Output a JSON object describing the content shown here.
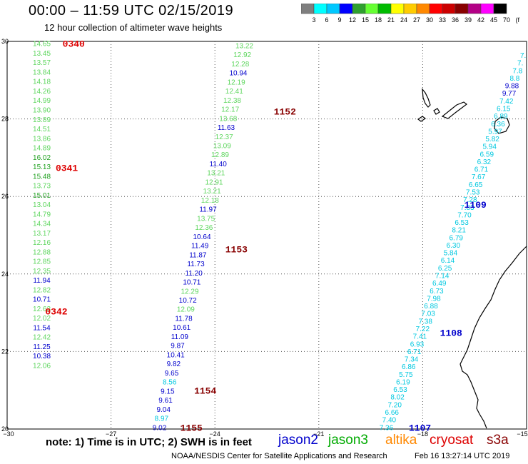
{
  "title": "00:00  –  11:59 UTC 02/15/2019",
  "subtitle": "12 hour collection of altimeter wave heights",
  "colorbar": {
    "colors": [
      "#7f7f7f",
      "#00ffff",
      "#00c8ff",
      "#0000ff",
      "#2fa02f",
      "#66ff33",
      "#00bb00",
      "#ffff00",
      "#ffcc00",
      "#ff8800",
      "#ff0000",
      "#cc0000",
      "#880000",
      "#b30086",
      "#ff00ff",
      "#000000"
    ],
    "labels": [
      "3",
      "6",
      "9",
      "12",
      "15",
      "18",
      "21",
      "24",
      "27",
      "30",
      "33",
      "36",
      "39",
      "42",
      "45",
      "70",
      "(ft)"
    ]
  },
  "axes": {
    "lon_ticks": [
      "−30",
      "−27",
      "−24",
      "−21",
      "−18",
      "−15"
    ],
    "lat_ticks": [
      "30",
      "28",
      "26",
      "24",
      "22",
      "20"
    ],
    "lon_range": [
      -30,
      -15
    ],
    "lat_range": [
      20,
      30
    ]
  },
  "value_colors": {
    "cyan": "#00c8e0",
    "blue": "#0000cc",
    "lightgreen": "#5ed65e",
    "green": "#1fa01f",
    "time_red": "#dd0000",
    "time_darkred": "#880000",
    "time_blue": "#0000cc"
  },
  "tracks": [
    {
      "name": "track-0340",
      "lon_top": -29.0,
      "lon_bottom": -29.0,
      "lat_top": 29.95,
      "lat_bottom": 21.65,
      "values": [
        {
          "v": "14.65",
          "c": "lightgreen"
        },
        {
          "v": "13.45",
          "c": "lightgreen"
        },
        {
          "v": "13.57",
          "c": "lightgreen"
        },
        {
          "v": "13.84",
          "c": "lightgreen"
        },
        {
          "v": "14.18",
          "c": "lightgreen"
        },
        {
          "v": "14.26",
          "c": "lightgreen"
        },
        {
          "v": "14.99",
          "c": "lightgreen"
        },
        {
          "v": "13.90",
          "c": "lightgreen"
        },
        {
          "v": "13.89",
          "c": "lightgreen"
        },
        {
          "v": "14.51",
          "c": "lightgreen"
        },
        {
          "v": "13.86",
          "c": "lightgreen"
        },
        {
          "v": "14.89",
          "c": "lightgreen"
        },
        {
          "v": "16.02",
          "c": "green"
        },
        {
          "v": "15.13",
          "c": "green"
        },
        {
          "v": "15.48",
          "c": "green"
        },
        {
          "v": "13.73",
          "c": "lightgreen"
        },
        {
          "v": "15.01",
          "c": "green"
        },
        {
          "v": "13.04",
          "c": "lightgreen"
        },
        {
          "v": "14.79",
          "c": "lightgreen"
        },
        {
          "v": "14.34",
          "c": "lightgreen"
        },
        {
          "v": "13.17",
          "c": "lightgreen"
        },
        {
          "v": "12.16",
          "c": "lightgreen"
        },
        {
          "v": "12.88",
          "c": "lightgreen"
        },
        {
          "v": "12.85",
          "c": "lightgreen"
        },
        {
          "v": "12.35",
          "c": "lightgreen"
        },
        {
          "v": "11.94",
          "c": "blue"
        },
        {
          "v": "12.82",
          "c": "lightgreen"
        },
        {
          "v": "10.71",
          "c": "blue"
        },
        {
          "v": "12.63",
          "c": "lightgreen"
        },
        {
          "v": "12.02",
          "c": "lightgreen"
        },
        {
          "v": "11.54",
          "c": "blue"
        },
        {
          "v": "12.42",
          "c": "lightgreen"
        },
        {
          "v": "11.25",
          "c": "blue"
        },
        {
          "v": "10.38",
          "c": "blue"
        },
        {
          "v": "12.06",
          "c": "lightgreen"
        }
      ]
    },
    {
      "name": "track-1152",
      "lon_top": -23.15,
      "lon_bottom": -25.6,
      "lat_top": 29.9,
      "lat_bottom": 20.05,
      "values": [
        {
          "v": "13.22",
          "c": "lightgreen"
        },
        {
          "v": "12.92",
          "c": "lightgreen"
        },
        {
          "v": "12.28",
          "c": "lightgreen"
        },
        {
          "v": "10.94",
          "c": "blue"
        },
        {
          "v": "12.19",
          "c": "lightgreen"
        },
        {
          "v": "12.41",
          "c": "lightgreen"
        },
        {
          "v": "12.38",
          "c": "lightgreen"
        },
        {
          "v": "12.17",
          "c": "lightgreen"
        },
        {
          "v": "13.68",
          "c": "lightgreen"
        },
        {
          "v": "11.63",
          "c": "blue"
        },
        {
          "v": "12.37",
          "c": "lightgreen"
        },
        {
          "v": "13.09",
          "c": "lightgreen"
        },
        {
          "v": "12.89",
          "c": "lightgreen"
        },
        {
          "v": "11.40",
          "c": "blue"
        },
        {
          "v": "13.21",
          "c": "lightgreen"
        },
        {
          "v": "12.91",
          "c": "lightgreen"
        },
        {
          "v": "13.21",
          "c": "lightgreen"
        },
        {
          "v": "12.18",
          "c": "lightgreen"
        },
        {
          "v": "11.97",
          "c": "blue"
        },
        {
          "v": "13.75",
          "c": "lightgreen"
        },
        {
          "v": "12.36",
          "c": "lightgreen"
        },
        {
          "v": "10.64",
          "c": "blue"
        },
        {
          "v": "11.49",
          "c": "blue"
        },
        {
          "v": "11.87",
          "c": "blue"
        },
        {
          "v": "11.73",
          "c": "blue"
        },
        {
          "v": "11.20",
          "c": "blue"
        },
        {
          "v": "10.71",
          "c": "blue"
        },
        {
          "v": "12.29",
          "c": "lightgreen"
        },
        {
          "v": "10.72",
          "c": "blue"
        },
        {
          "v": "12.09",
          "c": "lightgreen"
        },
        {
          "v": "11.78",
          "c": "blue"
        },
        {
          "v": "10.61",
          "c": "blue"
        },
        {
          "v": "11.09",
          "c": "blue"
        },
        {
          "v": "9.87",
          "c": "blue"
        },
        {
          "v": "10.41",
          "c": "blue"
        },
        {
          "v": "9.82",
          "c": "blue"
        },
        {
          "v": "9.65",
          "c": "blue"
        },
        {
          "v": "8.56",
          "c": "cyan"
        },
        {
          "v": "9.15",
          "c": "blue"
        },
        {
          "v": "9.61",
          "c": "blue"
        },
        {
          "v": "9.04",
          "c": "blue"
        },
        {
          "v": "8.97",
          "c": "cyan"
        },
        {
          "v": "9.02",
          "c": "blue"
        }
      ]
    },
    {
      "name": "track-1107-1109",
      "lon_top": -15.1,
      "lon_bottom": -19.05,
      "lat_top": 29.65,
      "lat_bottom": 20.05,
      "values": [
        {
          "v": "7.",
          "c": "cyan"
        },
        {
          "v": "7.",
          "c": "cyan"
        },
        {
          "v": "7.8",
          "c": "cyan"
        },
        {
          "v": "8.8",
          "c": "cyan"
        },
        {
          "v": "9.88",
          "c": "blue"
        },
        {
          "v": "9.77",
          "c": "blue"
        },
        {
          "v": "7.42",
          "c": "cyan"
        },
        {
          "v": "6.15",
          "c": "cyan"
        },
        {
          "v": "6.89",
          "c": "cyan"
        },
        {
          "v": "6.36",
          "c": "cyan"
        },
        {
          "v": "5.97",
          "c": "cyan"
        },
        {
          "v": "5.82",
          "c": "cyan"
        },
        {
          "v": "5.94",
          "c": "cyan"
        },
        {
          "v": "6.59",
          "c": "cyan"
        },
        {
          "v": "6.32",
          "c": "cyan"
        },
        {
          "v": "6.71",
          "c": "cyan"
        },
        {
          "v": "7.67",
          "c": "cyan"
        },
        {
          "v": "6.65",
          "c": "cyan"
        },
        {
          "v": "7.53",
          "c": "cyan"
        },
        {
          "v": "7.28",
          "c": "cyan"
        },
        {
          "v": "7.83",
          "c": "cyan"
        },
        {
          "v": "7.70",
          "c": "cyan"
        },
        {
          "v": "6.53",
          "c": "cyan"
        },
        {
          "v": "8.21",
          "c": "cyan"
        },
        {
          "v": "6.79",
          "c": "cyan"
        },
        {
          "v": "6.30",
          "c": "cyan"
        },
        {
          "v": "5.84",
          "c": "cyan"
        },
        {
          "v": "6.14",
          "c": "cyan"
        },
        {
          "v": "6.25",
          "c": "cyan"
        },
        {
          "v": "7.14",
          "c": "cyan"
        },
        {
          "v": "6.49",
          "c": "cyan"
        },
        {
          "v": "6.73",
          "c": "cyan"
        },
        {
          "v": "7.98",
          "c": "cyan"
        },
        {
          "v": "6.88",
          "c": "cyan"
        },
        {
          "v": "7.03",
          "c": "cyan"
        },
        {
          "v": "7.38",
          "c": "cyan"
        },
        {
          "v": "7.22",
          "c": "cyan"
        },
        {
          "v": "7.41",
          "c": "cyan"
        },
        {
          "v": "6.93",
          "c": "cyan"
        },
        {
          "v": "6.71",
          "c": "cyan"
        },
        {
          "v": "7.34",
          "c": "cyan"
        },
        {
          "v": "6.86",
          "c": "cyan"
        },
        {
          "v": "5.75",
          "c": "cyan"
        },
        {
          "v": "6.19",
          "c": "cyan"
        },
        {
          "v": "6.53",
          "c": "cyan"
        },
        {
          "v": "8.02",
          "c": "cyan"
        },
        {
          "v": "7.20",
          "c": "cyan"
        },
        {
          "v": "6.66",
          "c": "cyan"
        },
        {
          "v": "7.40",
          "c": "cyan"
        },
        {
          "v": "7.36",
          "c": "cyan"
        }
      ]
    }
  ],
  "time_labels": [
    {
      "text": "0340",
      "lon": -28.4,
      "lat": 29.95,
      "c": "time_red"
    },
    {
      "text": "0341",
      "lon": -28.6,
      "lat": 26.75,
      "c": "time_red"
    },
    {
      "text": "0342",
      "lon": -28.9,
      "lat": 23.05,
      "c": "time_red"
    },
    {
      "text": "1152",
      "lon": -22.3,
      "lat": 28.2,
      "c": "time_darkred"
    },
    {
      "text": "1153",
      "lon": -23.7,
      "lat": 24.65,
      "c": "time_darkred"
    },
    {
      "text": "1154",
      "lon": -24.6,
      "lat": 21.0,
      "c": "time_darkred"
    },
    {
      "text": "1155",
      "lon": -25.0,
      "lat": 20.05,
      "c": "time_darkred"
    },
    {
      "text": "1109",
      "lon": -16.8,
      "lat": 25.8,
      "c": "time_blue"
    },
    {
      "text": "1108",
      "lon": -17.5,
      "lat": 22.5,
      "c": "time_blue"
    },
    {
      "text": "1107",
      "lon": -18.4,
      "lat": 20.05,
      "c": "time_blue"
    }
  ],
  "footer": {
    "note": "note:  1) Time is in UTC;  2) SWH is in feet",
    "satellites": [
      {
        "name": "jason2",
        "color": "#0000cc"
      },
      {
        "name": "jason3",
        "color": "#00aa00"
      },
      {
        "name": "altika",
        "color": "#ff8800"
      },
      {
        "name": "cryosat",
        "color": "#dd0000"
      },
      {
        "name": "s3a",
        "color": "#880000"
      }
    ],
    "credit": "NOAA/NESDIS Center for Satellite Applications and Research",
    "timestamp": "Feb 16 13:27:14 UTC 2019"
  }
}
